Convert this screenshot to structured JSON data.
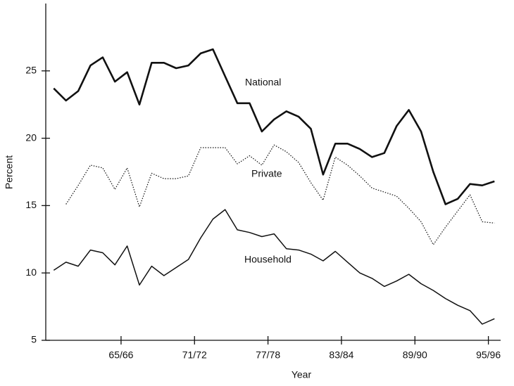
{
  "chart_data": {
    "type": "line",
    "x_label": "Year",
    "y_label": "Percent",
    "x": [
      1960.5,
      1961.5,
      1962.5,
      1963.5,
      1964.5,
      1965.5,
      1966.5,
      1967.5,
      1968.5,
      1969.5,
      1970.5,
      1971.5,
      1972.5,
      1973.5,
      1974.5,
      1975.5,
      1976.5,
      1977.5,
      1978.5,
      1979.5,
      1980.5,
      1981.5,
      1982.5,
      1983.5,
      1984.5,
      1985.5,
      1986.5,
      1987.5,
      1988.5,
      1989.5,
      1990.5,
      1991.5,
      1992.5,
      1993.5,
      1994.5,
      1995.5,
      1996.5
    ],
    "series": [
      {
        "name": "National",
        "color": "#111111",
        "line_width": 2.6,
        "dash": "none",
        "values": [
          23.7,
          22.8,
          23.5,
          25.4,
          26.0,
          24.2,
          24.9,
          22.5,
          25.6,
          25.6,
          25.2,
          25.4,
          26.3,
          26.6,
          24.6,
          22.6,
          22.6,
          20.5,
          21.4,
          22.0,
          21.6,
          20.7,
          17.3,
          19.6,
          19.6,
          19.2,
          18.6,
          18.9,
          20.9,
          22.1,
          20.5,
          17.5,
          15.1,
          15.5,
          16.6,
          16.5,
          16.8
        ]
      },
      {
        "name": "Private",
        "color": "#111111",
        "line_width": 1.2,
        "dash": "1.5,2",
        "values": [
          null,
          15.1,
          16.5,
          18.0,
          17.8,
          16.2,
          17.8,
          14.9,
          17.4,
          17.0,
          17.0,
          17.2,
          19.3,
          19.3,
          19.3,
          18.1,
          18.7,
          18.0,
          19.5,
          19.0,
          18.2,
          16.7,
          15.4,
          18.6,
          18.0,
          17.2,
          16.3,
          16.0,
          15.7,
          14.8,
          13.8,
          12.1,
          13.4,
          14.6,
          15.8,
          13.8,
          13.7
        ]
      },
      {
        "name": "Household",
        "color": "#111111",
        "line_width": 1.5,
        "dash": "none",
        "values": [
          10.2,
          10.8,
          10.5,
          11.7,
          11.5,
          10.6,
          12.0,
          9.1,
          10.5,
          9.8,
          10.4,
          11.0,
          12.6,
          14.0,
          14.7,
          13.2,
          13.0,
          12.7,
          12.9,
          11.8,
          11.7,
          11.4,
          10.9,
          11.6,
          10.8,
          10.0,
          9.6,
          9.0,
          9.4,
          9.9,
          9.2,
          8.7,
          8.1,
          7.6,
          7.2,
          6.2,
          6.6
        ]
      }
    ],
    "xlim": [
      1960,
      1997
    ],
    "xticks": [
      {
        "value": 1966,
        "label": "65/66"
      },
      {
        "value": 1972,
        "label": "71/72"
      },
      {
        "value": 1978,
        "label": "77/78"
      },
      {
        "value": 1984,
        "label": "83/84"
      },
      {
        "value": 1990,
        "label": "89/90"
      },
      {
        "value": 1996,
        "label": "95/96"
      }
    ],
    "ylim": [
      5,
      30
    ],
    "yticks": [
      5,
      10,
      15,
      20,
      25
    ],
    "grid": false
  }
}
